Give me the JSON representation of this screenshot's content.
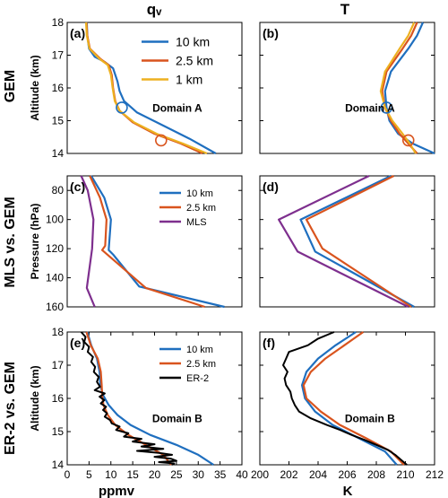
{
  "figure": {
    "col_titles": [
      "qᵥ",
      "T"
    ],
    "row_labels": [
      "GEM",
      "MLS vs. GEM",
      "ER-2 vs. GEM"
    ],
    "x_bottom_labels": [
      "ppmv",
      "K"
    ]
  },
  "colors": {
    "blue": "#1f6fbf",
    "orange": "#d9541e",
    "yellow": "#edb120",
    "purple": "#7e2f8e",
    "black": "#000000"
  },
  "chart_data": [
    {
      "id": "a",
      "type": "line",
      "panel_label": "(a)",
      "annotation": "Domain A",
      "ylabel": "Altitude (km)",
      "xlim": [
        0,
        40
      ],
      "ylim": [
        14,
        18
      ],
      "y_reversed": false,
      "xticks": [],
      "yticks": [
        14,
        15,
        16,
        17,
        18
      ],
      "show_x_ticklabels": false,
      "legend": {
        "position": "top-right",
        "size": "large"
      },
      "series": [
        {
          "name": "10 km",
          "color": "blue",
          "x": [
            4.5,
            4.6,
            5,
            6.3,
            8.5,
            10.5,
            11.5,
            12,
            13,
            16,
            22,
            28,
            34
          ],
          "y": [
            18,
            17.6,
            17.2,
            16.95,
            16.8,
            16.6,
            16.2,
            15.9,
            15.6,
            15.25,
            14.85,
            14.45,
            14
          ]
        },
        {
          "name": "2.5 km",
          "color": "orange",
          "x": [
            4.4,
            4.6,
            5.2,
            7.5,
            9.5,
            10.2,
            10.5,
            11,
            12,
            15,
            20,
            26,
            31
          ],
          "y": [
            18,
            17.6,
            17.2,
            16.9,
            16.7,
            16.4,
            16,
            15.6,
            15.3,
            14.95,
            14.6,
            14.3,
            14
          ]
        },
        {
          "name": "1 km",
          "color": "yellow",
          "x": [
            4.3,
            4.5,
            5.1,
            7.3,
            9.3,
            10,
            10.4,
            10.9,
            12,
            15.3,
            20.5,
            26.5,
            32
          ],
          "y": [
            18,
            17.6,
            17.2,
            16.9,
            16.7,
            16.4,
            16,
            15.6,
            15.3,
            14.95,
            14.6,
            14.3,
            14
          ]
        }
      ],
      "markers": [
        {
          "color": "blue",
          "x": 12.5,
          "y": 15.4
        },
        {
          "color": "orange",
          "x": 21.5,
          "y": 14.4
        }
      ]
    },
    {
      "id": "b",
      "type": "line",
      "panel_label": "(b)",
      "annotation": "Domain A",
      "ylabel": "",
      "xlim": [
        200,
        212
      ],
      "ylim": [
        14,
        18
      ],
      "y_reversed": false,
      "xticks": [],
      "yticks": [
        14,
        15,
        16,
        17,
        18
      ],
      "show_x_ticklabels": false,
      "show_y_ticklabels": false,
      "series": [
        {
          "name": "10 km",
          "color": "blue",
          "x": [
            211.2,
            210.8,
            210.2,
            209,
            208.6,
            208.7,
            208.9,
            209.5,
            210.5,
            212
          ],
          "y": [
            18,
            17.6,
            17.2,
            16.5,
            15.9,
            15.4,
            15,
            14.6,
            14.3,
            14
          ]
        },
        {
          "name": "2.5 km",
          "color": "orange",
          "x": [
            210.8,
            210.4,
            209.8,
            208.7,
            208.4,
            208.6,
            209,
            209.6,
            210.2,
            210.8
          ],
          "y": [
            18,
            17.6,
            17.2,
            16.5,
            15.9,
            15.4,
            15,
            14.6,
            14.3,
            14
          ]
        },
        {
          "name": "1 km",
          "color": "yellow",
          "x": [
            210.6,
            210.2,
            209.6,
            208.6,
            208.3,
            208.6,
            209.1,
            209.8,
            210.3,
            210.7
          ],
          "y": [
            18,
            17.6,
            17.2,
            16.5,
            15.9,
            15.4,
            15,
            14.6,
            14.3,
            14
          ]
        }
      ],
      "markers": [
        {
          "color": "blue",
          "x": 208.7,
          "y": 15.4
        },
        {
          "color": "orange",
          "x": 210.2,
          "y": 14.4
        }
      ]
    },
    {
      "id": "c",
      "type": "line",
      "panel_label": "(c)",
      "annotation": "",
      "ylabel": "Pressure (hPa)",
      "xlim": [
        0,
        40
      ],
      "ylim": [
        160,
        70
      ],
      "y_reversed": true,
      "xticks": [],
      "yticks": [
        80,
        100,
        120,
        140,
        160
      ],
      "show_x_ticklabels": false,
      "legend": {
        "position": "top-right",
        "size": "small"
      },
      "series": [
        {
          "name": "10 km",
          "color": "blue",
          "x": [
            5.5,
            8.5,
            10,
            9.5,
            10.5,
            16.5,
            36
          ],
          "y": [
            70,
            85,
            100,
            121,
            124,
            146,
            160
          ]
        },
        {
          "name": "2.5 km",
          "color": "orange",
          "x": [
            5.2,
            7.5,
            9,
            8.7,
            8,
            18,
            31.5
          ],
          "y": [
            70,
            85,
            100,
            118,
            121,
            147,
            160
          ]
        },
        {
          "name": "MLS",
          "color": "purple",
          "x": [
            3.2,
            4.7,
            6,
            5.7,
            4.5,
            6.3
          ],
          "y": [
            70,
            80,
            100,
            120,
            147,
            160
          ]
        }
      ]
    },
    {
      "id": "d",
      "type": "line",
      "panel_label": "(d)",
      "annotation": "",
      "ylabel": "",
      "xlim": [
        200,
        212
      ],
      "ylim": [
        160,
        70
      ],
      "y_reversed": true,
      "xticks": [],
      "yticks": [
        80,
        100,
        120,
        140,
        160
      ],
      "show_x_ticklabels": false,
      "show_y_ticklabels": false,
      "series": [
        {
          "name": "10 km",
          "color": "blue",
          "x": [
            209,
            202.8,
            203.8,
            210.6
          ],
          "y": [
            70,
            100,
            122,
            160
          ]
        },
        {
          "name": "2.5 km",
          "color": "orange",
          "x": [
            209.2,
            203.2,
            204.3,
            210.4
          ],
          "y": [
            70,
            100,
            120,
            160
          ]
        },
        {
          "name": "MLS",
          "color": "purple",
          "x": [
            207.5,
            201.3,
            202.6,
            210.2
          ],
          "y": [
            70,
            100,
            122,
            160
          ]
        }
      ]
    },
    {
      "id": "e",
      "type": "line",
      "panel_label": "(e)",
      "annotation": "Domain B",
      "ylabel": "Altitude (km)",
      "xlim": [
        0,
        40
      ],
      "ylim": [
        14,
        18
      ],
      "y_reversed": false,
      "xticks": [
        0,
        5,
        10,
        15,
        20,
        25,
        30,
        35,
        40
      ],
      "yticks": [
        14,
        15,
        16,
        17,
        18
      ],
      "show_x_ticklabels": true,
      "legend": {
        "position": "top-right",
        "size": "small"
      },
      "series": [
        {
          "name": "10 km",
          "color": "blue",
          "x": [
            4.6,
            5.5,
            6.8,
            7.4,
            7.6,
            8.2,
            9.5,
            11.5,
            14.5,
            19,
            25,
            30,
            33.5
          ],
          "y": [
            18,
            17.6,
            17.2,
            16.8,
            16.4,
            16.1,
            15.8,
            15.5,
            15.2,
            14.9,
            14.6,
            14.3,
            14
          ]
        },
        {
          "name": "2.5 km",
          "color": "orange",
          "x": [
            4.4,
            5.4,
            7,
            7.7,
            7.9,
            8,
            8.3,
            9.3,
            11,
            14,
            18,
            22,
            23.8
          ],
          "y": [
            18,
            17.6,
            17.2,
            16.8,
            16.4,
            16.1,
            15.8,
            15.5,
            15.2,
            14.9,
            14.6,
            14.3,
            14
          ]
        },
        {
          "name": "ER-2",
          "color": "black",
          "x": [
            3.2,
            4.2,
            3.9,
            5,
            4.7,
            5.9,
            5.5,
            6.4,
            6.1,
            7.2,
            6.8,
            7.5,
            6.3,
            8.6,
            7.4,
            8.5,
            7.7,
            8.9,
            8.2,
            9.1,
            8.6,
            9.8,
            10.2,
            12,
            11.2,
            14,
            13,
            17,
            15,
            20,
            17,
            22,
            16,
            21,
            24,
            20,
            23.8,
            25,
            21,
            24.5,
            24
          ],
          "y": [
            18,
            17.85,
            17.7,
            17.55,
            17.4,
            17.25,
            17.1,
            16.95,
            16.8,
            16.65,
            16.5,
            16.35,
            16.25,
            16.15,
            16.05,
            15.95,
            15.85,
            15.75,
            15.65,
            15.55,
            15.45,
            15.35,
            15.25,
            15.15,
            15.05,
            14.95,
            14.85,
            14.78,
            14.7,
            14.62,
            14.55,
            14.48,
            14.42,
            14.36,
            14.3,
            14.24,
            14.18,
            14.12,
            14.08,
            14.04,
            14
          ]
        }
      ]
    },
    {
      "id": "f",
      "type": "line",
      "panel_label": "(f)",
      "annotation": "Domain B",
      "ylabel": "",
      "xlim": [
        200,
        212
      ],
      "ylim": [
        14,
        18
      ],
      "y_reversed": false,
      "xticks": [
        200,
        202,
        204,
        206,
        208,
        210,
        212
      ],
      "yticks": [
        14,
        15,
        16,
        17,
        18
      ],
      "show_x_ticklabels": true,
      "show_y_ticklabels": false,
      "series": [
        {
          "name": "10 km",
          "color": "blue",
          "x": [
            206.6,
            205.2,
            204,
            203.2,
            202.9,
            203.1,
            203.8,
            205,
            206.8,
            208.6,
            209.4
          ],
          "y": [
            18,
            17.6,
            17.2,
            16.8,
            16.4,
            16,
            15.6,
            15.2,
            14.8,
            14.4,
            14
          ]
        },
        {
          "name": "2.5 km",
          "color": "orange",
          "x": [
            207.1,
            205.8,
            204.5,
            203.5,
            203,
            203.2,
            204.2,
            205.5,
            207.3,
            209,
            209.9
          ],
          "y": [
            18,
            17.6,
            17.2,
            16.8,
            16.4,
            16,
            15.6,
            15.2,
            14.8,
            14.4,
            14
          ]
        },
        {
          "name": "ER-2",
          "color": "black",
          "x": [
            205.1,
            204,
            203.3,
            202,
            201.8,
            201.6,
            201.9,
            201.7,
            201.8,
            202.1,
            202.2,
            202.4,
            202.7,
            203.5,
            204.6,
            205.5,
            206.3,
            207.2,
            208,
            208.8,
            209.3,
            209.7,
            210.1
          ],
          "y": [
            18,
            17.8,
            17.6,
            17.4,
            17.2,
            17,
            16.8,
            16.6,
            16.4,
            16.2,
            16,
            15.8,
            15.6,
            15.4,
            15.2,
            15.05,
            14.9,
            14.75,
            14.6,
            14.45,
            14.3,
            14.15,
            14
          ]
        }
      ]
    }
  ]
}
